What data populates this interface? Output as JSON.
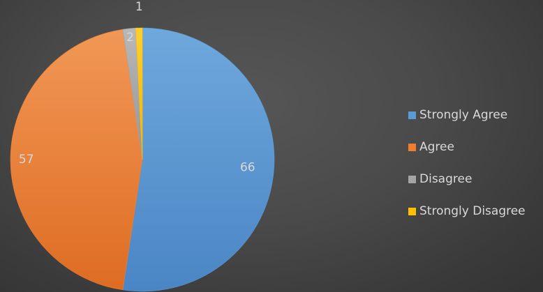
{
  "chart_data": {
    "type": "pie",
    "title": "",
    "categories": [
      "Strongly Agree",
      "Agree",
      "Disagree",
      "Strongly Disagree"
    ],
    "values": [
      66,
      57,
      2,
      1
    ],
    "colors": [
      "#5B9BD5",
      "#ED7D31",
      "#A5A5A5",
      "#FFC000"
    ],
    "legend_position": "right",
    "data_labels": [
      "66",
      "57",
      "2",
      "1"
    ]
  },
  "legend": {
    "items": [
      {
        "label": "Strongly Agree",
        "color": "#5B9BD5"
      },
      {
        "label": "Agree",
        "color": "#ED7D31"
      },
      {
        "label": "Disagree",
        "color": "#A5A5A5"
      },
      {
        "label": "Strongly Disagree",
        "color": "#FFC000"
      }
    ]
  }
}
